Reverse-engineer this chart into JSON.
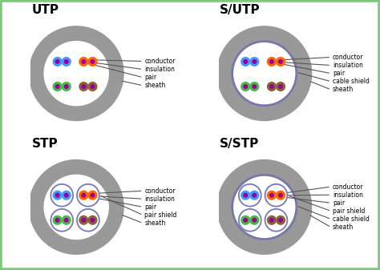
{
  "bg_color": "#ffffff",
  "border_color": "#7fc97f",
  "titles": [
    "UTP",
    "S/UTP",
    "STP",
    "S/STP"
  ],
  "sheath_color": "#999999",
  "cable_shield_color": "#7777aa",
  "pair_shield_color": "#7777bb",
  "conductor_color": "#990099",
  "pair_colors": {
    "blue": "#4499ff",
    "orange": "#ff6600",
    "green": "#44bb44",
    "brown": "#886633"
  },
  "annotations": {
    "UTP": [
      "conductor",
      "insulation",
      "pair",
      "sheath"
    ],
    "S/UTP": [
      "conductor",
      "insulation",
      "pair",
      "cable shield",
      "sheath"
    ],
    "STP": [
      "conductor",
      "insulation",
      "pair",
      "pair shield",
      "sheath"
    ],
    "S/STP": [
      "conductor",
      "insulation",
      "pair",
      "pair shield",
      "cable shield",
      "sheath"
    ]
  },
  "has_cable_shield": [
    "S/UTP",
    "S/STP"
  ],
  "has_pair_shield": [
    "STP",
    "S/STP"
  ]
}
